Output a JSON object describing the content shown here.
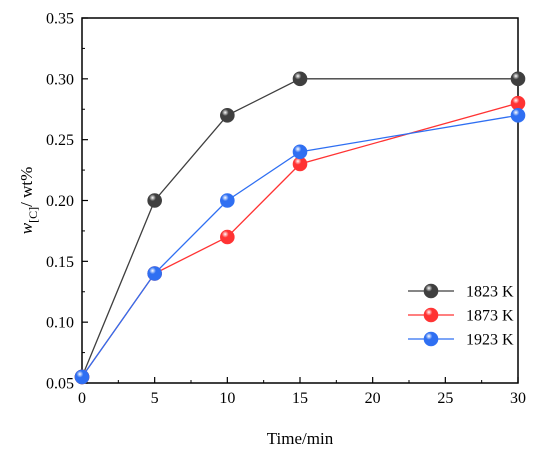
{
  "chart_data": {
    "type": "line",
    "title": "",
    "xlabel": "Time/min",
    "ylabel_main": "w",
    "ylabel_subscript": "[C]",
    "ylabel_tail": "/ wt%",
    "xlim": [
      0,
      30
    ],
    "ylim": [
      0.05,
      0.35
    ],
    "xticks": [
      0,
      5,
      10,
      15,
      20,
      25,
      30
    ],
    "yticks": [
      0.05,
      0.1,
      0.15,
      0.2,
      0.25,
      0.3,
      0.35
    ],
    "grid": false,
    "legend": "bottom-right",
    "series": [
      {
        "name": "1823 K",
        "color": "#3f3f3f",
        "x": [
          0,
          5,
          10,
          15,
          30
        ],
        "y": [
          0.055,
          0.2,
          0.27,
          0.3,
          0.3
        ]
      },
      {
        "name": "1873 K",
        "color": "#ff3333",
        "x": [
          0,
          5,
          10,
          15,
          30
        ],
        "y": [
          0.055,
          0.14,
          0.17,
          0.23,
          0.28
        ]
      },
      {
        "name": "1923 K",
        "color": "#2f6ff2",
        "x": [
          0,
          5,
          10,
          15,
          30
        ],
        "y": [
          0.055,
          0.14,
          0.2,
          0.24,
          0.27
        ]
      }
    ]
  }
}
